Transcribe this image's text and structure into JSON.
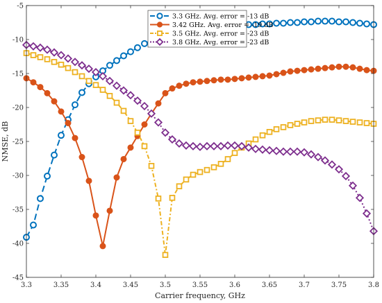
{
  "chart_data": {
    "type": "line",
    "xlabel": "Carrier frequency, GHz",
    "ylabel": "NMSE, dB",
    "xlim": [
      3.3,
      3.8
    ],
    "ylim": [
      -45,
      -5
    ],
    "xticks": [
      "3.3",
      "3.35",
      "3.4",
      "3.45",
      "3.5",
      "3.55",
      "3.6",
      "3.65",
      "3.7",
      "3.75",
      "3.8"
    ],
    "yticks": [
      "-5",
      "-10",
      "-15",
      "-20",
      "-25",
      "-30",
      "-35",
      "-40",
      "-45"
    ],
    "grid": false,
    "legend_position": "top-right",
    "x": [
      3.3,
      3.31,
      3.32,
      3.33,
      3.34,
      3.35,
      3.36,
      3.37,
      3.38,
      3.39,
      3.4,
      3.41,
      3.42,
      3.43,
      3.44,
      3.45,
      3.46,
      3.47,
      3.48,
      3.49,
      3.5,
      3.51,
      3.52,
      3.53,
      3.54,
      3.55,
      3.56,
      3.57,
      3.58,
      3.59,
      3.6,
      3.61,
      3.62,
      3.63,
      3.64,
      3.65,
      3.66,
      3.67,
      3.68,
      3.69,
      3.7,
      3.71,
      3.72,
      3.73,
      3.74,
      3.75,
      3.76,
      3.77,
      3.78,
      3.79,
      3.8
    ],
    "series": [
      {
        "name": "3.3 GHz. Avg. error = -13 dB",
        "color": "#0072BD",
        "marker": "circle",
        "dash": "long-dash",
        "values": [
          -39.1,
          -37.3,
          -33.4,
          -30.1,
          -27.0,
          -24.1,
          -21.8,
          -19.6,
          -17.8,
          -16.5,
          -15.5,
          -14.6,
          -13.8,
          -13.1,
          -12.4,
          -11.8,
          -11.2,
          -10.6,
          -10.1,
          -9.7,
          -9.3,
          -9.0,
          -8.8,
          -8.6,
          -8.5,
          -8.4,
          -8.3,
          -8.2,
          -8.1,
          -8.0,
          -7.9,
          -7.9,
          -7.8,
          -7.8,
          -7.7,
          -7.7,
          -7.6,
          -7.6,
          -7.5,
          -7.5,
          -7.4,
          -7.4,
          -7.3,
          -7.3,
          -7.3,
          -7.4,
          -7.4,
          -7.5,
          -7.6,
          -7.7,
          -7.8
        ]
      },
      {
        "name": "3.42 GHz. Avg. error = -19 dB",
        "color": "#D95319",
        "marker": "circle-filled",
        "dash": "solid",
        "values": [
          -15.7,
          -16.3,
          -17.0,
          -17.9,
          -19.1,
          -20.6,
          -22.3,
          -24.5,
          -27.3,
          -30.8,
          -35.9,
          -40.4,
          -35.2,
          -30.3,
          -27.6,
          -25.9,
          -24.2,
          -22.5,
          -20.9,
          -19.4,
          -17.9,
          -17.2,
          -16.8,
          -16.5,
          -16.3,
          -16.2,
          -16.1,
          -16.0,
          -15.9,
          -15.9,
          -15.8,
          -15.7,
          -15.6,
          -15.5,
          -15.4,
          -15.3,
          -15.1,
          -14.9,
          -14.7,
          -14.6,
          -14.5,
          -14.4,
          -14.3,
          -14.2,
          -14.1,
          -14.0,
          -14.0,
          -14.1,
          -14.3,
          -14.5,
          -14.6
        ]
      },
      {
        "name": "3.5 GHz. Avg. error = -23 dB",
        "color": "#EDB120",
        "marker": "square",
        "dash": "dash-dot",
        "values": [
          -12.0,
          -12.3,
          -12.6,
          -12.9,
          -13.3,
          -13.7,
          -14.2,
          -14.8,
          -15.4,
          -16.1,
          -16.7,
          -17.4,
          -18.3,
          -19.3,
          -20.5,
          -22.0,
          -23.7,
          -25.7,
          -28.6,
          -33.4,
          -41.7,
          -33.3,
          -31.6,
          -30.6,
          -29.9,
          -29.5,
          -29.2,
          -28.8,
          -28.3,
          -27.6,
          -26.7,
          -25.9,
          -25.3,
          -24.7,
          -24.1,
          -23.6,
          -23.2,
          -22.9,
          -22.6,
          -22.4,
          -22.2,
          -22.0,
          -21.9,
          -21.8,
          -21.8,
          -21.9,
          -22.0,
          -22.1,
          -22.2,
          -22.3,
          -22.4
        ]
      },
      {
        "name": "3.8 GHz. Avg. error = -23 dB",
        "color": "#7E2F8E",
        "marker": "diamond",
        "dash": "dotted",
        "values": [
          -10.8,
          -11.0,
          -11.2,
          -11.5,
          -11.9,
          -12.3,
          -12.8,
          -13.3,
          -13.8,
          -14.3,
          -14.8,
          -15.4,
          -16.1,
          -16.8,
          -17.5,
          -18.2,
          -19.0,
          -19.8,
          -20.9,
          -22.2,
          -23.7,
          -24.7,
          -25.3,
          -25.6,
          -25.7,
          -25.8,
          -25.7,
          -25.7,
          -25.7,
          -25.6,
          -25.6,
          -25.7,
          -25.9,
          -26.1,
          -26.2,
          -26.3,
          -26.4,
          -26.5,
          -26.5,
          -26.5,
          -26.6,
          -26.9,
          -27.3,
          -27.8,
          -28.4,
          -29.1,
          -30.1,
          -31.5,
          -33.3,
          -35.6,
          -38.2
        ]
      }
    ]
  }
}
